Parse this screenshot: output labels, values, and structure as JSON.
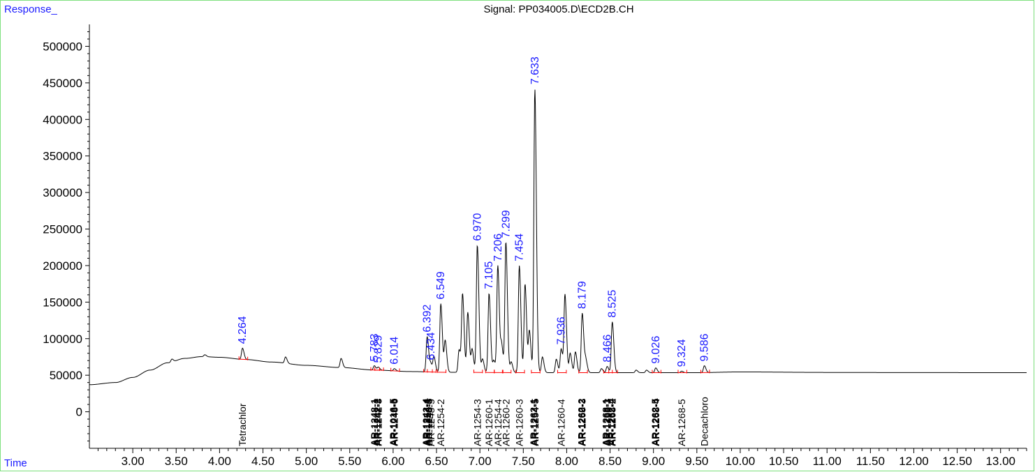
{
  "header": {
    "y_axis_label": "Response_",
    "x_axis_label": "Time",
    "signal_title": "Signal: PP034005.D\\ECD2B.CH"
  },
  "colors": {
    "frame": "#7ee07e",
    "axis_label": "#1a1aff",
    "trace": "#000000",
    "retention_time_labels": "#1a1aff",
    "baseline_marks": "#ff0000",
    "compound_labels": "#000000"
  },
  "chart_data": {
    "type": "line",
    "title": "Signal: PP034005.D\\ECD2B.CH",
    "xlabel": "Time",
    "ylabel": "Response_",
    "xlim": [
      2.5,
      13.3
    ],
    "ylim": [
      -50000,
      530000
    ],
    "x_ticks": [
      "3.00",
      "3.50",
      "4.00",
      "4.50",
      "5.00",
      "5.50",
      "6.00",
      "6.50",
      "7.00",
      "7.50",
      "8.00",
      "8.50",
      "9.00",
      "9.50",
      "10.00",
      "10.50",
      "11.00",
      "11.50",
      "12.00",
      "12.50",
      "13.00"
    ],
    "y_ticks": [
      "0",
      "50000",
      "100000",
      "150000",
      "200000",
      "250000",
      "300000",
      "350000",
      "400000",
      "450000",
      "500000"
    ],
    "grid": false,
    "baseline_points": [
      [
        2.5,
        37000
      ],
      [
        2.8,
        40000
      ],
      [
        3.0,
        47000
      ],
      [
        3.2,
        57000
      ],
      [
        3.4,
        67000
      ],
      [
        3.6,
        73000
      ],
      [
        3.8,
        75500
      ],
      [
        4.0,
        74500
      ],
      [
        4.3,
        71500
      ],
      [
        4.6,
        68000
      ],
      [
        5.0,
        63500
      ],
      [
        5.4,
        60500
      ],
      [
        5.8,
        57000
      ],
      [
        6.2,
        55000
      ],
      [
        6.6,
        54000
      ],
      [
        7.5,
        53500
      ],
      [
        8.5,
        53500
      ],
      [
        9.5,
        53500
      ],
      [
        10.0,
        54500
      ],
      [
        11.0,
        53800
      ],
      [
        12.0,
        53600
      ],
      [
        13.3,
        53500
      ]
    ],
    "peaks": [
      {
        "rt": 3.45,
        "height": 72000,
        "labeled": false
      },
      {
        "rt": 3.83,
        "height": 78000,
        "labeled": false
      },
      {
        "rt": 4.264,
        "height": 87000,
        "labeled": true
      },
      {
        "rt": 4.76,
        "height": 75000,
        "labeled": false
      },
      {
        "rt": 5.4,
        "height": 73000,
        "labeled": false
      },
      {
        "rt": 5.783,
        "height": 63000,
        "labeled": true
      },
      {
        "rt": 5.829,
        "height": 61000,
        "labeled": true
      },
      {
        "rt": 6.014,
        "height": 59000,
        "labeled": true
      },
      {
        "rt": 6.392,
        "height": 103000,
        "labeled": true
      },
      {
        "rt": 6.434,
        "height": 65000,
        "labeled": true
      },
      {
        "rt": 6.47,
        "height": 75000,
        "labeled": false
      },
      {
        "rt": 6.549,
        "height": 148000,
        "labeled": true
      },
      {
        "rt": 6.6,
        "height": 97000,
        "labeled": false
      },
      {
        "rt": 6.76,
        "height": 85000,
        "labeled": false
      },
      {
        "rt": 6.8,
        "height": 160000,
        "labeled": false
      },
      {
        "rt": 6.86,
        "height": 136000,
        "labeled": false
      },
      {
        "rt": 6.91,
        "height": 85000,
        "labeled": false
      },
      {
        "rt": 6.97,
        "height": 228000,
        "labeled": true
      },
      {
        "rt": 7.03,
        "height": 72000,
        "labeled": false
      },
      {
        "rt": 7.105,
        "height": 162000,
        "labeled": true
      },
      {
        "rt": 7.16,
        "height": 70000,
        "labeled": false
      },
      {
        "rt": 7.206,
        "height": 200000,
        "labeled": true
      },
      {
        "rt": 7.25,
        "height": 90000,
        "labeled": false
      },
      {
        "rt": 7.299,
        "height": 232000,
        "labeled": true
      },
      {
        "rt": 7.36,
        "height": 68000,
        "labeled": false
      },
      {
        "rt": 7.454,
        "height": 200000,
        "labeled": true
      },
      {
        "rt": 7.52,
        "height": 175000,
        "labeled": false
      },
      {
        "rt": 7.57,
        "height": 110000,
        "labeled": false
      },
      {
        "rt": 7.633,
        "height": 442000,
        "labeled": true
      },
      {
        "rt": 7.72,
        "height": 75000,
        "labeled": false
      },
      {
        "rt": 7.88,
        "height": 72000,
        "labeled": false
      },
      {
        "rt": 7.936,
        "height": 86000,
        "labeled": true
      },
      {
        "rt": 7.98,
        "height": 160000,
        "labeled": false
      },
      {
        "rt": 8.04,
        "height": 80000,
        "labeled": false
      },
      {
        "rt": 8.1,
        "height": 82000,
        "labeled": false
      },
      {
        "rt": 8.179,
        "height": 135000,
        "labeled": true
      },
      {
        "rt": 8.22,
        "height": 70000,
        "labeled": false
      },
      {
        "rt": 8.4,
        "height": 59000,
        "labeled": false
      },
      {
        "rt": 8.466,
        "height": 62000,
        "labeled": true
      },
      {
        "rt": 8.525,
        "height": 123000,
        "labeled": true
      },
      {
        "rt": 8.8,
        "height": 57000,
        "labeled": false
      },
      {
        "rt": 8.92,
        "height": 57000,
        "labeled": false
      },
      {
        "rt": 9.026,
        "height": 60000,
        "labeled": true
      },
      {
        "rt": 9.324,
        "height": 55500,
        "labeled": true
      },
      {
        "rt": 9.586,
        "height": 63000,
        "labeled": true
      }
    ],
    "retention_time_labels": [
      "4.264",
      "5.783",
      "5.829",
      "6.014",
      "6.392",
      "6.434",
      "6.549",
      "6.970",
      "7.105",
      "7.206",
      "7.299",
      "7.454",
      "7.633",
      "7.936",
      "8.179",
      "8.466",
      "8.525",
      "9.026",
      "9.324",
      "9.586"
    ],
    "compound_labels": [
      {
        "rt": 4.264,
        "text": "Tetrachlor",
        "bold": false
      },
      {
        "rt": 5.783,
        "text": "AR-1248-1",
        "bold": true
      },
      {
        "rt": 5.81,
        "text": "AR-1242-2",
        "bold": true
      },
      {
        "rt": 5.829,
        "text": "AR-1242-3",
        "bold": true
      },
      {
        "rt": 6.0,
        "text": "AR-1016-5",
        "bold": true
      },
      {
        "rt": 6.014,
        "text": "AR-1248-6",
        "bold": true
      },
      {
        "rt": 6.38,
        "text": "AR-1242-4",
        "bold": true
      },
      {
        "rt": 6.392,
        "text": "AR-1254-1",
        "bold": true
      },
      {
        "rt": 6.41,
        "text": "AR-1248-5",
        "bold": true
      },
      {
        "rt": 6.434,
        "text": "AR-1248-5",
        "bold": false
      },
      {
        "rt": 6.549,
        "text": "AR-1254-2",
        "bold": false
      },
      {
        "rt": 6.97,
        "text": "AR-1254-3",
        "bold": false
      },
      {
        "rt": 7.105,
        "text": "AR-1260-1",
        "bold": false
      },
      {
        "rt": 7.206,
        "text": "AR-1254-4",
        "bold": false
      },
      {
        "rt": 7.299,
        "text": "AR-1260-2",
        "bold": false
      },
      {
        "rt": 7.454,
        "text": "AR-1260-3",
        "bold": false
      },
      {
        "rt": 7.62,
        "text": "AR-1262-1",
        "bold": true
      },
      {
        "rt": 7.633,
        "text": "AR-1254-5",
        "bold": true
      },
      {
        "rt": 7.936,
        "text": "AR-1260-4",
        "bold": false
      },
      {
        "rt": 8.17,
        "text": "AR-1262-2",
        "bold": true
      },
      {
        "rt": 8.179,
        "text": "AR-1260-3",
        "bold": true
      },
      {
        "rt": 8.45,
        "text": "AR-1268-1",
        "bold": true
      },
      {
        "rt": 8.466,
        "text": "AR-1268-3",
        "bold": true
      },
      {
        "rt": 8.51,
        "text": "AR-1262-4",
        "bold": true
      },
      {
        "rt": 8.525,
        "text": "AR-1268-2",
        "bold": true
      },
      {
        "rt": 9.02,
        "text": "AR-1262-5",
        "bold": true
      },
      {
        "rt": 9.026,
        "text": "AR-1268-4",
        "bold": true
      },
      {
        "rt": 9.324,
        "text": "AR-1268-5",
        "bold": false
      },
      {
        "rt": 9.586,
        "text": "Decachloro",
        "bold": false
      }
    ]
  }
}
